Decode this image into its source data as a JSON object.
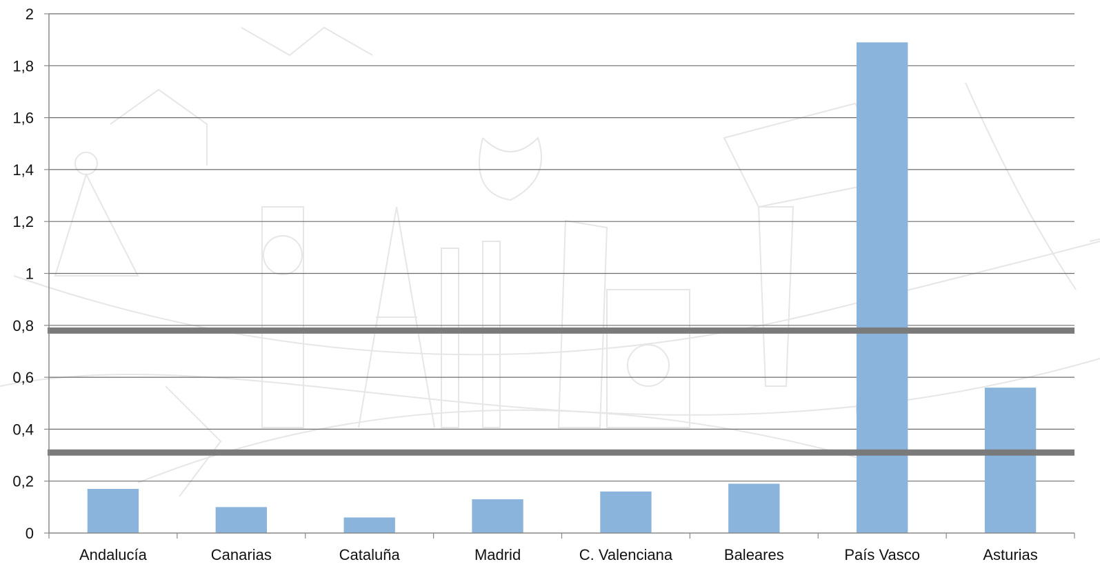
{
  "colors": {
    "bar": "#8AB4DC",
    "gridline": "#6b6b6b",
    "axis": "#888888",
    "threshold": "#7a7a7a",
    "background_sketch": "#e6e6e6"
  },
  "chart_data": {
    "type": "bar",
    "title": "",
    "xlabel": "",
    "ylabel": "",
    "categories": [
      "Andalucía",
      "Canarias",
      "Cataluña",
      "Madrid",
      "C. Valenciana",
      "Baleares",
      "País Vasco",
      "Asturias"
    ],
    "values": [
      0.17,
      0.1,
      0.06,
      0.13,
      0.16,
      0.19,
      1.89,
      0.56
    ],
    "ylim": [
      0,
      2
    ],
    "yticks": [
      "0",
      "0,2",
      "0,4",
      "0,6",
      "0,8",
      "1",
      "1,2",
      "1,4",
      "1,6",
      "1,8",
      "2"
    ],
    "ytick_values": [
      0,
      0.2,
      0.4,
      0.6,
      0.8,
      1.0,
      1.2,
      1.4,
      1.6,
      1.8,
      2.0
    ],
    "reference_lines": [
      0.78,
      0.31
    ],
    "grid": true,
    "legend": "none"
  }
}
